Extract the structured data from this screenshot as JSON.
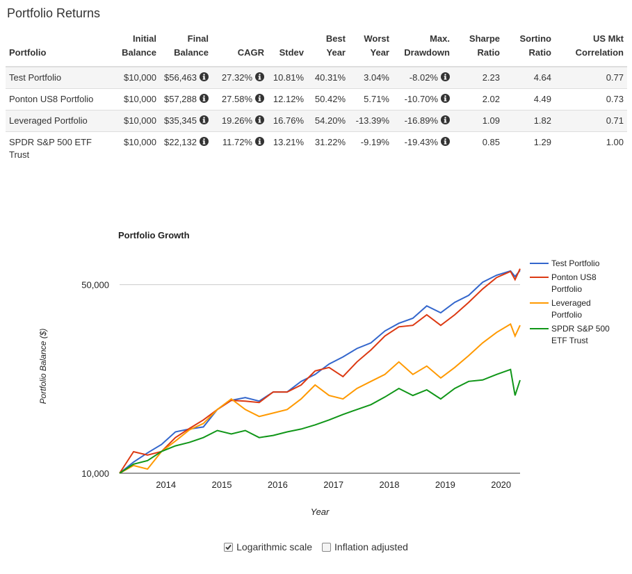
{
  "header": {
    "title": "Portfolio Returns"
  },
  "table": {
    "columns": [
      "Portfolio",
      "Initial Balance",
      "Final Balance",
      "CAGR",
      "Stdev",
      "Best Year",
      "Worst Year",
      "Max. Drawdown",
      "Sharpe Ratio",
      "Sortino Ratio",
      "US Mkt Correlation"
    ],
    "rows": [
      [
        "Test Portfolio",
        "$10,000",
        "$56,463",
        "27.32%",
        "10.81%",
        "40.31%",
        "3.04%",
        "-8.02%",
        "2.23",
        "4.64",
        "0.77"
      ],
      [
        "Ponton US8 Portfolio",
        "$10,000",
        "$57,288",
        "27.58%",
        "12.12%",
        "50.42%",
        "5.71%",
        "-10.70%",
        "2.02",
        "4.49",
        "0.73"
      ],
      [
        "Leveraged Portfolio",
        "$10,000",
        "$35,345",
        "19.26%",
        "16.76%",
        "54.20%",
        "-13.39%",
        "-16.89%",
        "1.09",
        "1.82",
        "0.71"
      ],
      [
        "SPDR S&P 500 ETF Trust",
        "$10,000",
        "$22,132",
        "11.72%",
        "13.21%",
        "31.22%",
        "-9.19%",
        "-19.43%",
        "0.85",
        "1.29",
        "1.00"
      ]
    ]
  },
  "chart_data": {
    "type": "line",
    "title": "Portfolio Growth",
    "x_label": "Year",
    "y_label": "Portfolio Balance ($)",
    "yscale": "log",
    "grid": true,
    "x": [
      2013.17,
      2013.42,
      2013.67,
      2013.92,
      2014.17,
      2014.42,
      2014.67,
      2014.92,
      2015.17,
      2015.42,
      2015.67,
      2015.92,
      2016.17,
      2016.42,
      2016.67,
      2016.92,
      2017.17,
      2017.42,
      2017.67,
      2017.92,
      2018.17,
      2018.42,
      2018.67,
      2018.92,
      2019.17,
      2019.42,
      2019.67,
      2019.92,
      2020.17,
      2020.25,
      2020.34
    ],
    "xlim": [
      2013.17,
      2020.34
    ],
    "xticks": [
      2014,
      2015,
      2016,
      2017,
      2018,
      2019,
      2020
    ],
    "ylim": [
      10000,
      64000
    ],
    "yticks": [
      {
        "value": 10000,
        "label": "10,000"
      },
      {
        "value": 50000,
        "label": "50,000"
      }
    ],
    "series": [
      {
        "name": "Test Portfolio",
        "color": "#3366cc",
        "values": [
          10000,
          11000,
          11900,
          12780,
          14230,
          14580,
          14840,
          17230,
          18630,
          19060,
          18510,
          20000,
          20000,
          21900,
          23240,
          25400,
          26990,
          29000,
          30430,
          33670,
          35970,
          37530,
          41720,
          39330,
          42990,
          45630,
          51070,
          54200,
          56200,
          53600,
          56463
        ]
      },
      {
        "name": "Ponton US8 Portfolio",
        "color": "#dc3912",
        "values": [
          10000,
          12020,
          11680,
          12040,
          13560,
          14650,
          15760,
          17230,
          18630,
          18510,
          18290,
          20000,
          20000,
          21240,
          23940,
          24660,
          22810,
          25860,
          28640,
          32260,
          34890,
          35330,
          38660,
          35330,
          38660,
          42990,
          48190,
          53150,
          55960,
          52200,
          57288
        ]
      },
      {
        "name": "Leveraged Portfolio",
        "color": "#ff9900",
        "values": [
          10000,
          10680,
          10360,
          12040,
          13160,
          14480,
          15290,
          17230,
          18850,
          17230,
          16230,
          16710,
          17230,
          18850,
          21240,
          19420,
          18850,
          20620,
          21900,
          23240,
          25860,
          23240,
          24960,
          22550,
          24660,
          27290,
          30430,
          33270,
          35700,
          32260,
          35345
        ]
      },
      {
        "name": "SPDR S&P 500 ETF Trust",
        "color": "#109618",
        "values": [
          10000,
          10810,
          11140,
          12040,
          12630,
          13010,
          13560,
          14400,
          13980,
          14400,
          13560,
          13810,
          14230,
          14580,
          15110,
          15760,
          16520,
          17230,
          17960,
          19170,
          20620,
          19420,
          20380,
          18850,
          20620,
          21900,
          22160,
          23240,
          24240,
          19420,
          22132
        ]
      }
    ]
  },
  "controls": [
    {
      "label": "Logarithmic scale",
      "checked": true
    },
    {
      "label": "Inflation adjusted",
      "checked": false
    }
  ]
}
